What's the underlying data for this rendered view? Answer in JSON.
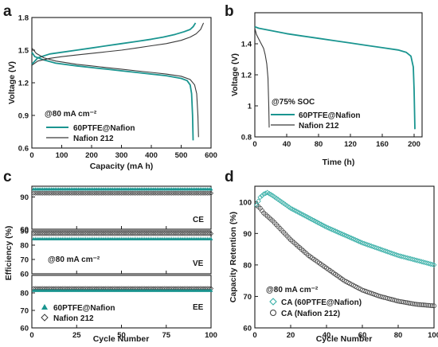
{
  "colors": {
    "teal": "#1a9590",
    "dark": "#3a3a3a",
    "axis": "#1a1a1a",
    "teal_marker": "#1a9590",
    "marker_light": "#3ab0a8"
  },
  "chart_data": [
    {
      "panel": "a",
      "type": "line",
      "xlabel": "Capacity (mA h)",
      "ylabel": "Voltage (V)",
      "xlim": [
        0,
        600
      ],
      "ylim": [
        0.6,
        1.8
      ],
      "xticks": [
        0,
        100,
        200,
        300,
        400,
        500,
        600
      ],
      "yticks": [
        0.6,
        0.9,
        1.2,
        1.5,
        1.8
      ],
      "note": "@80 mA cm⁻²",
      "legend_position": "lower-left",
      "series": [
        {
          "name": "60PTFE@Nafion",
          "color": "teal",
          "charge": {
            "x": [
              0,
              20,
              60,
              100,
              150,
              200,
              250,
              300,
              350,
              400,
              440,
              480,
              510,
              530,
              540,
              548
            ],
            "y": [
              1.37,
              1.43,
              1.465,
              1.48,
              1.5,
              1.52,
              1.54,
              1.56,
              1.58,
              1.6,
              1.62,
              1.645,
              1.67,
              1.69,
              1.715,
              1.75
            ]
          },
          "discharge": {
            "x": [
              0,
              10,
              40,
              80,
              150,
              200,
              250,
              300,
              350,
              400,
              450,
              500,
              520,
              530,
              535,
              538,
              540
            ],
            "y": [
              1.48,
              1.44,
              1.41,
              1.38,
              1.355,
              1.34,
              1.325,
              1.31,
              1.295,
              1.28,
              1.265,
              1.24,
              1.22,
              1.18,
              1.1,
              0.9,
              0.67
            ]
          }
        },
        {
          "name": "Nafion 212",
          "color": "dark",
          "charge": {
            "x": [
              0,
              20,
              60,
              100,
              150,
              200,
              250,
              300,
              350,
              400,
              450,
              500,
              530,
              550,
              565,
              575
            ],
            "y": [
              1.36,
              1.4,
              1.425,
              1.44,
              1.455,
              1.47,
              1.485,
              1.5,
              1.52,
              1.54,
              1.56,
              1.59,
              1.62,
              1.65,
              1.69,
              1.75
            ]
          },
          "discharge": {
            "x": [
              0,
              15,
              40,
              80,
              150,
              200,
              250,
              300,
              350,
              400,
              450,
              500,
              530,
              545,
              552,
              556,
              558
            ],
            "y": [
              1.52,
              1.47,
              1.43,
              1.4,
              1.37,
              1.355,
              1.34,
              1.325,
              1.31,
              1.295,
              1.28,
              1.26,
              1.23,
              1.18,
              1.1,
              0.9,
              0.7
            ]
          }
        }
      ]
    },
    {
      "panel": "b",
      "type": "line",
      "xlabel": "Time (h)",
      "ylabel": "Voltage (V)",
      "xlim": [
        0,
        210
      ],
      "ylim": [
        0.8,
        1.6
      ],
      "xticks": [
        0,
        40,
        80,
        120,
        160,
        200
      ],
      "yticks": [
        0.8,
        1.0,
        1.2,
        1.4
      ],
      "note": "@75% SOC",
      "legend_position": "lower-left",
      "series": [
        {
          "name": "60PTFE@Nafion",
          "color": "teal",
          "x": [
            0,
            5,
            20,
            40,
            60,
            80,
            100,
            120,
            140,
            160,
            180,
            190,
            196,
            199,
            200,
            201
          ],
          "y": [
            1.51,
            1.5,
            1.485,
            1.465,
            1.45,
            1.435,
            1.42,
            1.405,
            1.39,
            1.375,
            1.36,
            1.345,
            1.32,
            1.25,
            1.1,
            0.85
          ]
        },
        {
          "name": "Nafion 212",
          "color": "dark",
          "x": [
            0,
            2,
            5,
            8,
            11,
            13,
            15,
            16.5,
            17.5,
            18
          ],
          "y": [
            1.5,
            1.46,
            1.43,
            1.4,
            1.37,
            1.33,
            1.27,
            1.18,
            1.0,
            0.86
          ]
        }
      ]
    },
    {
      "panel": "c",
      "type": "scatter",
      "xlabel": "Cycle Number",
      "ylabel": "Efficiency (%)",
      "xlim": [
        0,
        100
      ],
      "xticks": [
        0,
        25,
        50,
        75,
        100
      ],
      "note": "@80 mA cm⁻²",
      "legend_position": "lower-left",
      "subplots": [
        {
          "label": "CE",
          "ylim": [
            60,
            100
          ],
          "yticks": [
            60,
            90
          ],
          "teal_value": 97.5,
          "dark_value": 93.5
        },
        {
          "label": "VE",
          "ylim": [
            60,
            90
          ],
          "yticks": [
            60,
            70,
            80,
            90
          ],
          "teal_value": 84.5,
          "dark_value": 88.0
        },
        {
          "label": "EE",
          "ylim": [
            60,
            90
          ],
          "yticks": [
            60,
            70,
            80
          ],
          "teal_value": 81.5,
          "dark_value": 82.5
        }
      ],
      "series": [
        {
          "name": "60PTFE@Nafion",
          "color": "teal",
          "marker": "filled-triangle"
        },
        {
          "name": "Nafion 212",
          "color": "dark",
          "marker": "open-diamond"
        }
      ]
    },
    {
      "panel": "d",
      "type": "scatter",
      "xlabel": "Cycle Number",
      "ylabel": "Capacity Retention (%)",
      "xlim": [
        0,
        100
      ],
      "ylim": [
        60,
        105
      ],
      "xticks": [
        0,
        20,
        40,
        60,
        80,
        100
      ],
      "yticks": [
        60,
        70,
        80,
        90,
        100
      ],
      "note": "@80 mA cm⁻²",
      "legend_position": "lower-left",
      "series": [
        {
          "name": "CA (60PTFE@Nafion)",
          "color": "teal",
          "marker": "open-diamond",
          "x": [
            1,
            3,
            5,
            7,
            10,
            15,
            20,
            30,
            40,
            50,
            60,
            70,
            80,
            90,
            100
          ],
          "y": [
            99,
            101.5,
            102.5,
            103,
            102,
            100,
            98,
            95,
            92,
            89.5,
            87,
            85,
            83,
            81.5,
            80
          ]
        },
        {
          "name": "CA (Nafion 212)",
          "color": "dark",
          "marker": "open-circle",
          "x": [
            1,
            3,
            5,
            8,
            10,
            15,
            20,
            30,
            40,
            50,
            60,
            70,
            80,
            90,
            100
          ],
          "y": [
            99,
            98,
            96.5,
            95,
            94,
            91,
            88,
            83,
            79,
            75,
            72,
            70,
            68.5,
            67.5,
            67
          ]
        }
      ]
    }
  ]
}
